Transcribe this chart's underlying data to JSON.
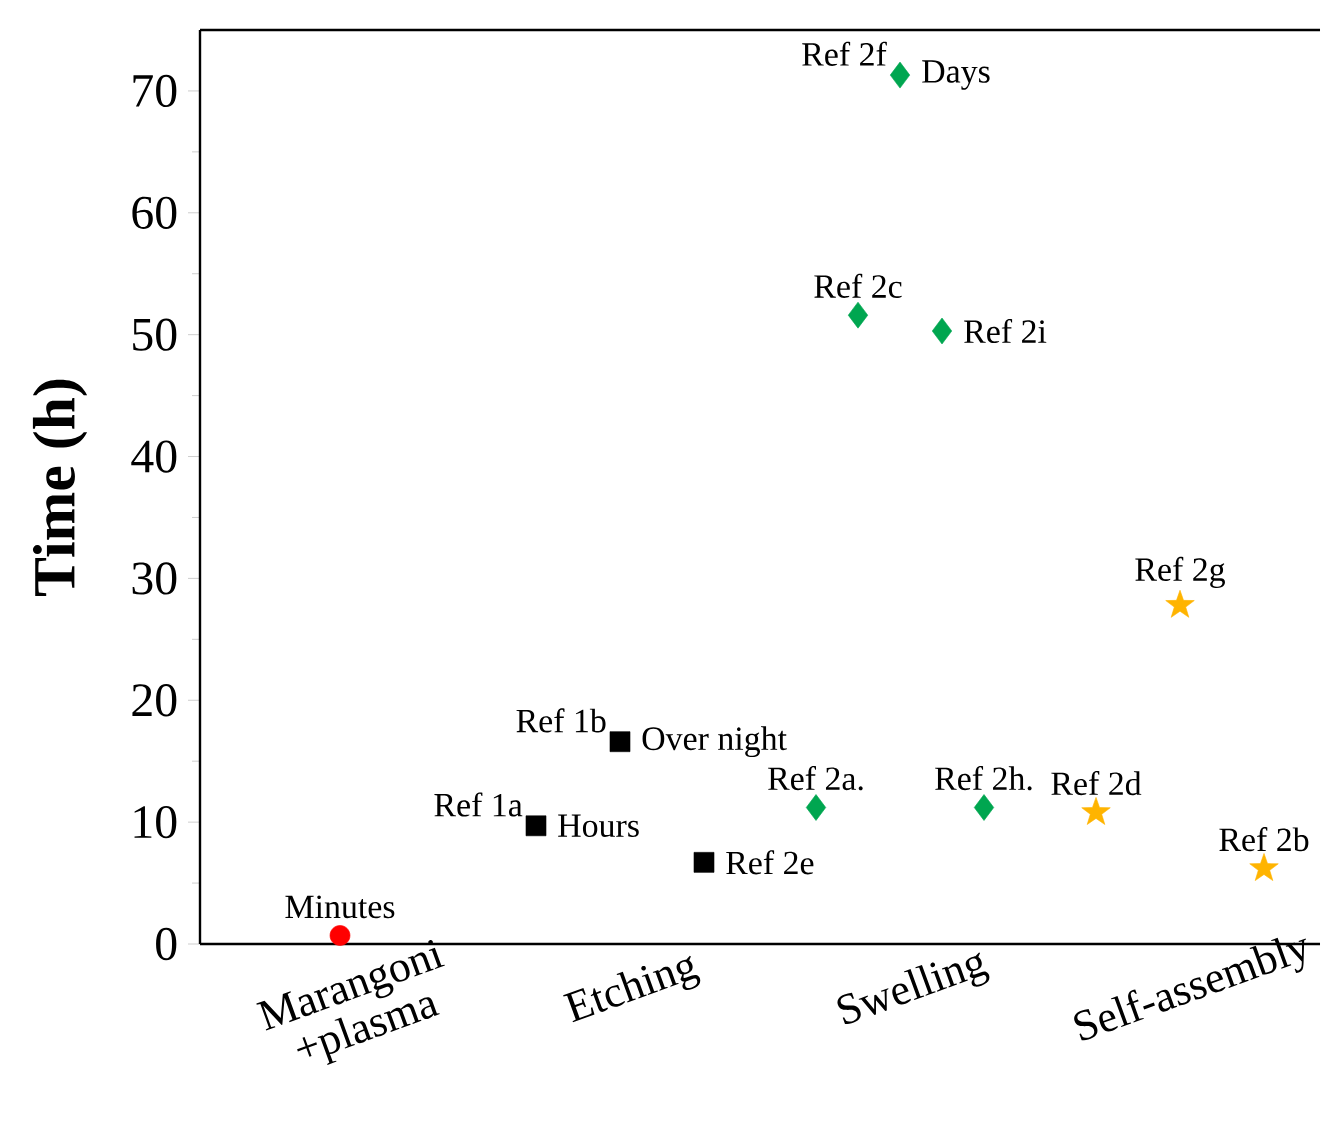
{
  "chart_data": {
    "type": "scatter",
    "ylabel": "Time (h)",
    "categories": [
      "Marangoni +plasma",
      "Etching",
      "Swelling",
      "Self-assembly"
    ],
    "ylim": [
      0,
      75
    ],
    "yticks": [
      0,
      10,
      20,
      30,
      40,
      50,
      60,
      70
    ],
    "series": [
      {
        "color": "#ff0000",
        "marker": "circle",
        "x": [
          "Marangoni +plasma"
        ],
        "values": [
          0.7
        ]
      },
      {
        "color": "#000000",
        "marker": "square",
        "x": [
          "Etching",
          "Etching",
          "Etching"
        ],
        "values": [
          9.7,
          16.6,
          6.7
        ]
      },
      {
        "color": "#00a650",
        "marker": "diamond",
        "x": [
          "Swelling",
          "Swelling",
          "Swelling",
          "Swelling",
          "Swelling"
        ],
        "values": [
          11.2,
          51.6,
          71.3,
          50.3,
          11.2
        ]
      },
      {
        "color": "#ffb400",
        "marker": "star",
        "x": [
          "Self-assembly",
          "Self-assembly",
          "Self-assembly"
        ],
        "values": [
          10.8,
          27.8,
          6.2
        ]
      }
    ],
    "annotations": [
      "Ref 2f",
      "Days",
      "Ref 2c",
      "Ref 2i",
      "Ref 2g",
      "Ref 1b",
      "Over night",
      "Ref 1a",
      "Hours",
      "Ref 2e",
      "Ref 2a.",
      "Ref 2h.",
      "Ref 2d",
      "Ref 2b",
      "Minutes"
    ]
  }
}
